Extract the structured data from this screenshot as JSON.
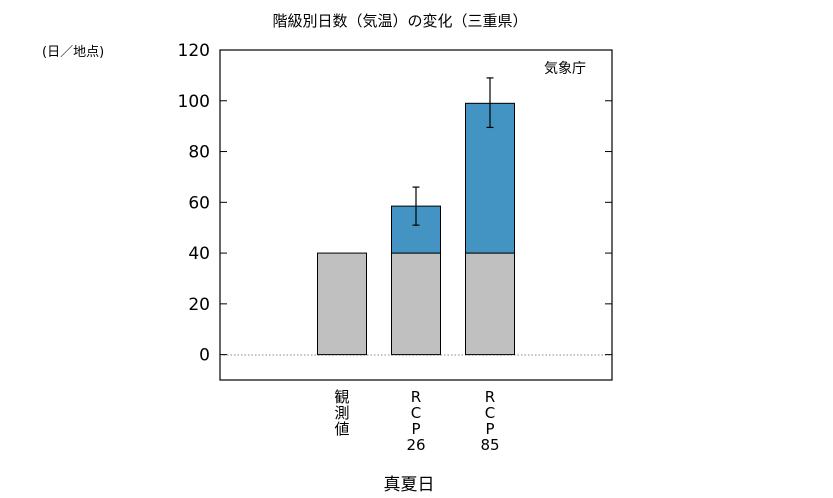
{
  "chart_data": {
    "type": "bar",
    "title": "階級別日数（気温）の変化（三重県）",
    "unit_label": "(日／地点)",
    "source_label": "気象庁",
    "xlabel": "真夏日",
    "ylabel": "",
    "ylim": [
      -10,
      120
    ],
    "yticks": [
      0,
      20,
      40,
      60,
      80,
      100,
      120
    ],
    "ytick_labels": [
      "0",
      "20",
      "40",
      "60",
      "80",
      "100",
      "120"
    ],
    "grid": false,
    "zero_line": "dotted",
    "categories": [
      {
        "lines": [
          "観",
          "測",
          "値"
        ]
      },
      {
        "lines": [
          "R",
          "C",
          "P",
          "26"
        ]
      },
      {
        "lines": [
          "R",
          "C",
          "P",
          "85"
        ]
      }
    ],
    "series": [
      {
        "values": [
          40,
          40,
          40
        ],
        "color": "#c0c0c0"
      },
      {
        "values": [
          0,
          18.5,
          59
        ],
        "color": "#4393c3"
      },
      {
        "values": [
          0,
          0,
          0
        ],
        "color": "#d6604d"
      }
    ],
    "totals": [
      40,
      58.5,
      99
    ],
    "increase_colors": [
      "#c0c0c0",
      "#4393c3",
      "#d6604d"
    ],
    "error_bars": [
      null,
      {
        "low": 51,
        "high": 66
      },
      {
        "low": 89.5,
        "high": 109
      }
    ]
  }
}
